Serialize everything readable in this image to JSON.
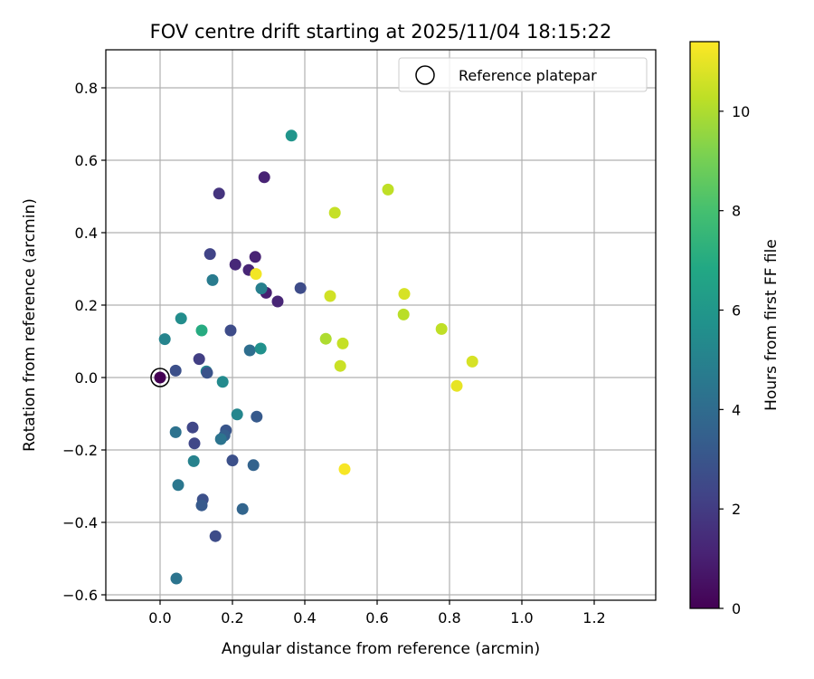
{
  "chart_data": {
    "type": "scatter",
    "title": "FOV centre drift starting at 2025/11/04 18:15:22",
    "xlabel": "Angular distance from reference (arcmin)",
    "ylabel": "Rotation from reference (arcmin)",
    "xlim": [
      -0.15,
      1.37
    ],
    "ylim": [
      -0.615,
      0.905
    ],
    "xticks": [
      0.0,
      0.2,
      0.4,
      0.6,
      0.8,
      1.0,
      1.2
    ],
    "xtick_labels": [
      "0.0",
      "0.2",
      "0.4",
      "0.6",
      "0.8",
      "1.0",
      "1.2"
    ],
    "yticks": [
      -0.6,
      -0.4,
      -0.2,
      0.0,
      0.2,
      0.4,
      0.6,
      0.8
    ],
    "ytick_labels": [
      "−0.6",
      "−0.4",
      "−0.2",
      "0.0",
      "0.2",
      "0.4",
      "0.6",
      "0.8"
    ],
    "grid": true,
    "legend": {
      "placement": "top-right",
      "entries": [
        "Reference platepar"
      ]
    },
    "colormap": "viridis",
    "colorbar": {
      "label": "Hours from first FF file",
      "range": [
        0,
        11.4
      ],
      "ticks": [
        0,
        2,
        4,
        6,
        8,
        10
      ],
      "tick_labels": [
        "0",
        "2",
        "4",
        "6",
        "8",
        "10"
      ]
    },
    "reference_point": {
      "x": 0.0,
      "y": 0.0
    },
    "points": [
      {
        "x": 0.0,
        "y": 0.0,
        "hours": 0.0
      },
      {
        "x": 0.163,
        "y": 0.508,
        "hours": 1.7
      },
      {
        "x": 0.288,
        "y": 0.553,
        "hours": 1.1
      },
      {
        "x": 0.363,
        "y": 0.668,
        "hours": 5.9
      },
      {
        "x": 0.138,
        "y": 0.341,
        "hours": 2.3
      },
      {
        "x": 0.208,
        "y": 0.312,
        "hours": 1.3
      },
      {
        "x": 0.263,
        "y": 0.333,
        "hours": 1.1
      },
      {
        "x": 0.245,
        "y": 0.297,
        "hours": 1.2
      },
      {
        "x": 0.265,
        "y": 0.286,
        "hours": 11.2
      },
      {
        "x": 0.293,
        "y": 0.234,
        "hours": 1.0
      },
      {
        "x": 0.28,
        "y": 0.246,
        "hours": 4.9
      },
      {
        "x": 0.325,
        "y": 0.21,
        "hours": 1.2
      },
      {
        "x": 0.388,
        "y": 0.247,
        "hours": 2.6
      },
      {
        "x": 0.145,
        "y": 0.269,
        "hours": 4.7
      },
      {
        "x": 0.058,
        "y": 0.163,
        "hours": 5.5
      },
      {
        "x": 0.115,
        "y": 0.13,
        "hours": 7.0
      },
      {
        "x": 0.195,
        "y": 0.13,
        "hours": 2.6
      },
      {
        "x": 0.013,
        "y": 0.106,
        "hours": 5.1
      },
      {
        "x": 0.248,
        "y": 0.075,
        "hours": 4.1
      },
      {
        "x": 0.278,
        "y": 0.08,
        "hours": 5.7
      },
      {
        "x": 0.108,
        "y": 0.051,
        "hours": 2.1
      },
      {
        "x": 0.043,
        "y": 0.019,
        "hours": 2.8
      },
      {
        "x": 0.128,
        "y": 0.017,
        "hours": 5.2
      },
      {
        "x": 0.13,
        "y": 0.013,
        "hours": 2.9
      },
      {
        "x": 0.173,
        "y": -0.012,
        "hours": 5.4
      },
      {
        "x": 0.213,
        "y": -0.102,
        "hours": 5.2
      },
      {
        "x": 0.267,
        "y": -0.108,
        "hours": 3.2
      },
      {
        "x": 0.09,
        "y": -0.138,
        "hours": 2.4
      },
      {
        "x": 0.043,
        "y": -0.151,
        "hours": 4.3
      },
      {
        "x": 0.182,
        "y": -0.146,
        "hours": 3.0
      },
      {
        "x": 0.178,
        "y": -0.16,
        "hours": 3.4
      },
      {
        "x": 0.168,
        "y": -0.17,
        "hours": 4.4
      },
      {
        "x": 0.095,
        "y": -0.182,
        "hours": 2.4
      },
      {
        "x": 0.2,
        "y": -0.229,
        "hours": 2.8
      },
      {
        "x": 0.093,
        "y": -0.231,
        "hours": 5.0
      },
      {
        "x": 0.258,
        "y": -0.242,
        "hours": 3.6
      },
      {
        "x": 0.05,
        "y": -0.297,
        "hours": 4.5
      },
      {
        "x": 0.118,
        "y": -0.337,
        "hours": 2.8
      },
      {
        "x": 0.115,
        "y": -0.353,
        "hours": 3.2
      },
      {
        "x": 0.228,
        "y": -0.363,
        "hours": 3.7
      },
      {
        "x": 0.153,
        "y": -0.438,
        "hours": 2.6
      },
      {
        "x": 0.045,
        "y": -0.555,
        "hours": 4.4
      },
      {
        "x": 0.63,
        "y": 0.519,
        "hours": 10.3
      },
      {
        "x": 0.483,
        "y": 0.455,
        "hours": 10.4
      },
      {
        "x": 0.47,
        "y": 0.225,
        "hours": 10.6
      },
      {
        "x": 0.675,
        "y": 0.231,
        "hours": 10.7
      },
      {
        "x": 0.673,
        "y": 0.174,
        "hours": 10.2
      },
      {
        "x": 0.778,
        "y": 0.134,
        "hours": 10.3
      },
      {
        "x": 0.458,
        "y": 0.107,
        "hours": 10.0
      },
      {
        "x": 0.505,
        "y": 0.094,
        "hours": 10.4
      },
      {
        "x": 0.498,
        "y": 0.032,
        "hours": 10.5
      },
      {
        "x": 0.863,
        "y": 0.044,
        "hours": 10.7
      },
      {
        "x": 0.82,
        "y": -0.023,
        "hours": 11.0
      },
      {
        "x": 0.51,
        "y": -0.253,
        "hours": 11.3
      }
    ]
  }
}
